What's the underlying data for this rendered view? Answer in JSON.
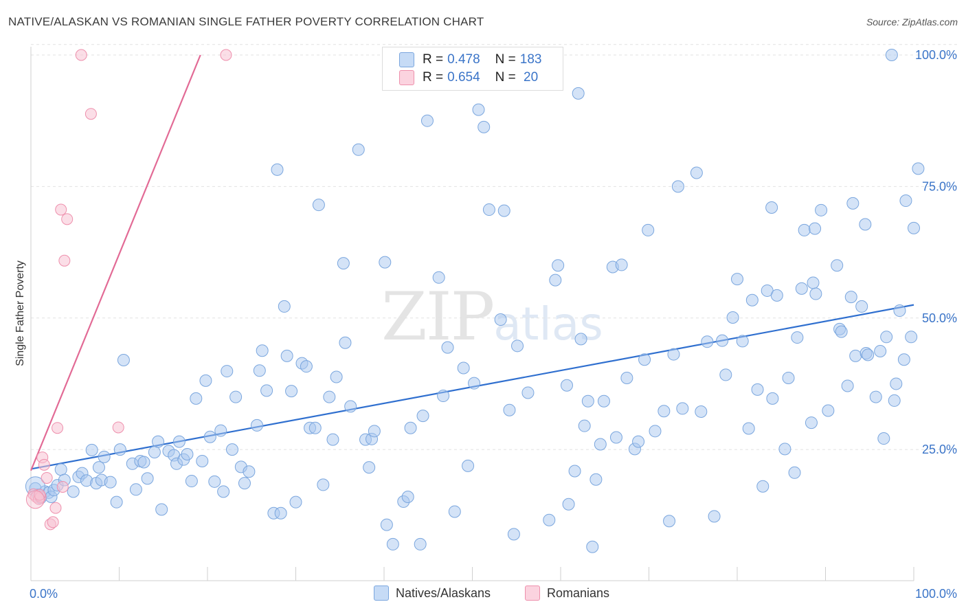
{
  "title": "NATIVE/ALASKAN VS ROMANIAN SINGLE FATHER POVERTY CORRELATION CHART",
  "source": "Source: ZipAtlas.com",
  "watermark": {
    "zip": "ZIP",
    "atlas": "atlas"
  },
  "legend": {
    "rows": [
      {
        "r_label": "R =",
        "r_value": "0.478",
        "n_label": "N =",
        "n_value": "183",
        "color": "#a9c8f0"
      },
      {
        "r_label": "R =",
        "r_value": "0.654",
        "n_label": "N =",
        "n_value": " 20",
        "color": "#f7b8cc"
      }
    ]
  },
  "bottom_legend": [
    {
      "label": "Natives/Alaskans",
      "color": "#a9c8f0"
    },
    {
      "label": "Romanians",
      "color": "#f7b8cc"
    }
  ],
  "colors": {
    "blue_fill": "#a9c8f0",
    "blue_stroke": "#7aa6de",
    "blue_line": "#2f6fcf",
    "pink_fill": "#f7c3d3",
    "pink_stroke": "#ee8fac",
    "pink_line": "#e26a95",
    "tick_label": "#3a74c8"
  },
  "chart_data": {
    "type": "scatter",
    "title": "NATIVE/ALASKAN VS ROMANIAN SINGLE FATHER POVERTY CORRELATION CHART",
    "xlabel": "",
    "ylabel": "Single Father Poverty",
    "xlim": [
      0,
      100
    ],
    "ylim": [
      0,
      102
    ],
    "x_tick_labels": [
      "0.0%",
      "100.0%"
    ],
    "y_ticks": [
      25,
      50,
      75,
      100
    ],
    "y_tick_labels": [
      "25.0%",
      "50.0%",
      "75.0%",
      "100.0%"
    ],
    "grid": true,
    "legend_placement": "top-center",
    "series": [
      {
        "name": "Natives/Alaskans",
        "color": "#a9c8f0",
        "trend": {
          "x": [
            0,
            100
          ],
          "y": [
            21.3,
            52.5
          ]
        },
        "points": [
          [
            0.5,
            17.6
          ],
          [
            0.8,
            16.4
          ],
          [
            1.1,
            15.8
          ],
          [
            1.6,
            17.0
          ],
          [
            2.0,
            16.8
          ],
          [
            2.3,
            16.0
          ],
          [
            2.6,
            17.3
          ],
          [
            3.0,
            18.2
          ],
          [
            3.4,
            21.2
          ],
          [
            3.8,
            19.2
          ],
          [
            4.8,
            17.0
          ],
          [
            5.4,
            19.8
          ],
          [
            5.8,
            20.5
          ],
          [
            6.3,
            19.1
          ],
          [
            6.9,
            24.9
          ],
          [
            7.4,
            18.6
          ],
          [
            7.7,
            21.6
          ],
          [
            8.0,
            19.2
          ],
          [
            8.3,
            23.6
          ],
          [
            9.0,
            18.8
          ],
          [
            9.7,
            15.0
          ],
          [
            10.1,
            25.0
          ],
          [
            10.5,
            42.0
          ],
          [
            11.5,
            22.3
          ],
          [
            11.9,
            17.4
          ],
          [
            12.4,
            22.8
          ],
          [
            12.8,
            22.6
          ],
          [
            13.2,
            19.5
          ],
          [
            14.0,
            24.5
          ],
          [
            14.4,
            26.5
          ],
          [
            14.8,
            13.6
          ],
          [
            15.6,
            24.7
          ],
          [
            16.2,
            23.9
          ],
          [
            16.5,
            22.3
          ],
          [
            16.8,
            26.5
          ],
          [
            17.3,
            23.1
          ],
          [
            17.7,
            24.1
          ],
          [
            18.2,
            19.0
          ],
          [
            18.7,
            34.7
          ],
          [
            19.4,
            22.8
          ],
          [
            19.8,
            38.1
          ],
          [
            20.3,
            27.4
          ],
          [
            20.8,
            18.9
          ],
          [
            21.5,
            28.6
          ],
          [
            21.8,
            17.0
          ],
          [
            22.2,
            39.9
          ],
          [
            22.8,
            25.0
          ],
          [
            23.2,
            35.0
          ],
          [
            23.8,
            21.7
          ],
          [
            24.2,
            18.6
          ],
          [
            24.7,
            20.8
          ],
          [
            25.6,
            29.6
          ],
          [
            25.9,
            40.0
          ],
          [
            26.2,
            43.8
          ],
          [
            26.7,
            36.2
          ],
          [
            27.5,
            12.9
          ],
          [
            27.9,
            78.2
          ],
          [
            28.3,
            12.9
          ],
          [
            28.7,
            52.2
          ],
          [
            29.0,
            42.8
          ],
          [
            29.5,
            36.1
          ],
          [
            30.0,
            15.0
          ],
          [
            30.7,
            41.4
          ],
          [
            31.2,
            40.8
          ],
          [
            31.6,
            29.1
          ],
          [
            32.2,
            29.1
          ],
          [
            32.6,
            71.5
          ],
          [
            33.1,
            18.3
          ],
          [
            33.8,
            35.0
          ],
          [
            34.2,
            26.9
          ],
          [
            34.6,
            38.8
          ],
          [
            35.4,
            60.4
          ],
          [
            35.6,
            45.3
          ],
          [
            36.2,
            33.2
          ],
          [
            37.1,
            82.0
          ],
          [
            37.9,
            26.9
          ],
          [
            38.3,
            21.6
          ],
          [
            38.6,
            27.0
          ],
          [
            38.9,
            28.5
          ],
          [
            40.1,
            60.6
          ],
          [
            40.3,
            10.7
          ],
          [
            41.0,
            7.0
          ],
          [
            42.2,
            15.1
          ],
          [
            42.7,
            16.0
          ],
          [
            43.0,
            29.1
          ],
          [
            44.1,
            7.0
          ],
          [
            44.4,
            31.4
          ],
          [
            44.9,
            87.5
          ],
          [
            46.2,
            57.7
          ],
          [
            46.7,
            35.2
          ],
          [
            47.2,
            44.4
          ],
          [
            48.0,
            13.2
          ],
          [
            49.0,
            40.5
          ],
          [
            49.5,
            21.9
          ],
          [
            50.2,
            37.6
          ],
          [
            50.7,
            89.6
          ],
          [
            51.3,
            86.3
          ],
          [
            51.9,
            70.6
          ],
          [
            53.2,
            49.7
          ],
          [
            53.6,
            70.4
          ],
          [
            54.2,
            32.5
          ],
          [
            54.7,
            8.9
          ],
          [
            55.1,
            44.7
          ],
          [
            56.3,
            35.8
          ],
          [
            58.7,
            11.6
          ],
          [
            59.4,
            57.2
          ],
          [
            59.7,
            60.0
          ],
          [
            60.7,
            37.2
          ],
          [
            60.9,
            14.6
          ],
          [
            61.6,
            20.9
          ],
          [
            62.0,
            92.7
          ],
          [
            62.3,
            46.0
          ],
          [
            62.7,
            29.5
          ],
          [
            63.1,
            34.2
          ],
          [
            63.6,
            6.5
          ],
          [
            64.0,
            19.3
          ],
          [
            64.5,
            26.0
          ],
          [
            64.9,
            34.2
          ],
          [
            65.9,
            59.7
          ],
          [
            66.3,
            27.3
          ],
          [
            66.9,
            60.1
          ],
          [
            67.5,
            38.6
          ],
          [
            68.4,
            25.1
          ],
          [
            68.8,
            26.5
          ],
          [
            69.5,
            42.1
          ],
          [
            69.9,
            66.7
          ],
          [
            70.7,
            28.5
          ],
          [
            71.7,
            32.3
          ],
          [
            72.3,
            11.4
          ],
          [
            72.8,
            43.1
          ],
          [
            73.3,
            75.0
          ],
          [
            73.8,
            32.8
          ],
          [
            75.4,
            77.6
          ],
          [
            75.9,
            32.2
          ],
          [
            76.6,
            45.5
          ],
          [
            77.4,
            12.3
          ],
          [
            78.3,
            45.7
          ],
          [
            78.7,
            39.2
          ],
          [
            79.5,
            50.1
          ],
          [
            80.0,
            57.4
          ],
          [
            80.6,
            45.6
          ],
          [
            81.3,
            29.0
          ],
          [
            81.7,
            53.4
          ],
          [
            82.3,
            36.4
          ],
          [
            82.9,
            18.0
          ],
          [
            83.4,
            55.2
          ],
          [
            83.9,
            71.0
          ],
          [
            84.0,
            34.7
          ],
          [
            84.5,
            54.3
          ],
          [
            85.4,
            25.1
          ],
          [
            85.8,
            38.6
          ],
          [
            86.5,
            20.6
          ],
          [
            86.8,
            46.3
          ],
          [
            87.3,
            55.6
          ],
          [
            87.6,
            66.7
          ],
          [
            88.4,
            30.1
          ],
          [
            88.6,
            56.7
          ],
          [
            88.8,
            67.0
          ],
          [
            88.9,
            54.6
          ],
          [
            89.5,
            70.5
          ],
          [
            90.3,
            32.4
          ],
          [
            91.3,
            60.0
          ],
          [
            91.6,
            47.9
          ],
          [
            91.8,
            47.4
          ],
          [
            92.5,
            37.1
          ],
          [
            92.9,
            54.0
          ],
          [
            93.1,
            71.8
          ],
          [
            93.4,
            42.8
          ],
          [
            94.1,
            52.2
          ],
          [
            94.5,
            67.8
          ],
          [
            94.6,
            43.3
          ],
          [
            94.8,
            43.0
          ],
          [
            95.7,
            35.0
          ],
          [
            96.2,
            43.7
          ],
          [
            96.6,
            27.1
          ],
          [
            96.9,
            46.4
          ],
          [
            97.8,
            34.3
          ],
          [
            98.0,
            37.5
          ],
          [
            98.4,
            51.4
          ],
          [
            98.9,
            42.1
          ],
          [
            99.1,
            72.3
          ],
          [
            99.7,
            46.4
          ],
          [
            100.0,
            67.1
          ],
          [
            100.5,
            78.4
          ],
          [
            97.5,
            100.0
          ]
        ]
      },
      {
        "name": "Romanians",
        "color": "#f7b8cc",
        "trend": {
          "x": [
            0,
            19.2
          ],
          "y": [
            21.0,
            100.0
          ]
        },
        "points": [
          [
            0.3,
            16.5
          ],
          [
            0.6,
            16.0
          ],
          [
            0.9,
            15.6
          ],
          [
            1.1,
            16.0
          ],
          [
            1.3,
            23.5
          ],
          [
            1.5,
            22.1
          ],
          [
            1.8,
            19.6
          ],
          [
            2.2,
            10.8
          ],
          [
            2.5,
            11.2
          ],
          [
            2.8,
            13.9
          ],
          [
            3.0,
            29.1
          ],
          [
            3.4,
            70.6
          ],
          [
            3.8,
            60.9
          ],
          [
            4.1,
            68.8
          ],
          [
            5.7,
            100.0
          ],
          [
            6.8,
            88.8
          ],
          [
            9.9,
            29.2
          ],
          [
            22.1,
            100.0
          ],
          [
            3.6,
            17.9
          ],
          [
            1.0,
            16.4
          ]
        ]
      }
    ]
  }
}
